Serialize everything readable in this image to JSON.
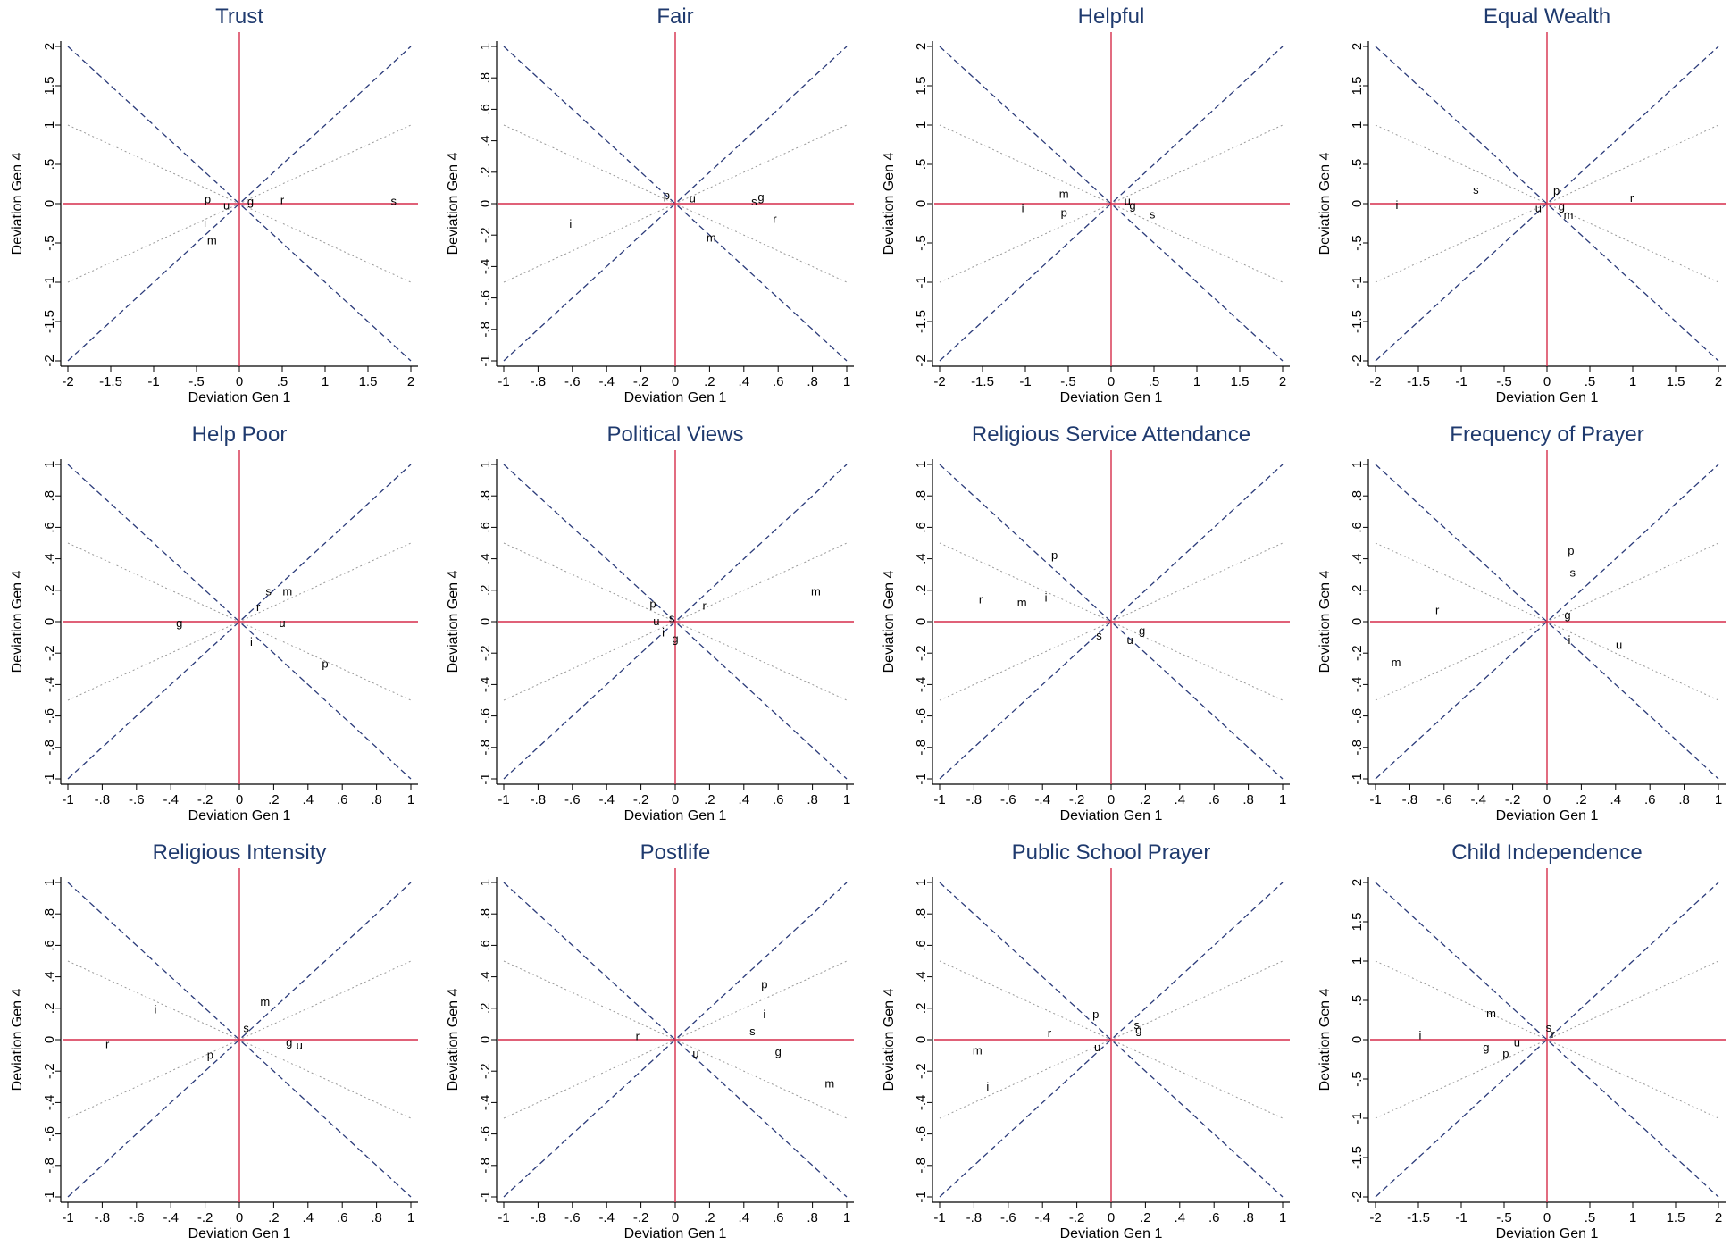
{
  "chart_data": [
    {
      "type": "scatter",
      "title": "Trust",
      "xlabel": "Deviation Gen 1",
      "ylabel": "Deviation Gen 4",
      "xlim": [
        -2,
        2
      ],
      "ylim": [
        -2,
        2
      ],
      "xticks": [
        "-2",
        "-1.5",
        "-1",
        "-.5",
        "0",
        ".5",
        "1",
        "1.5",
        "2"
      ],
      "yticks": [
        "-2",
        "-1.5",
        "-1",
        "-.5",
        "0",
        ".5",
        "1",
        "1.5",
        "2"
      ],
      "reference_lines": {
        "axes_color": "#d62d4b",
        "diagonal_color": "#2b3b7a",
        "half_slope_color": "#9a9a9a"
      },
      "points": [
        {
          "label": "p",
          "x": -0.37,
          "y": 0.05
        },
        {
          "label": "u",
          "x": -0.15,
          "y": -0.03
        },
        {
          "label": "g",
          "x": 0.13,
          "y": 0.02
        },
        {
          "label": "r",
          "x": 0.5,
          "y": 0.04
        },
        {
          "label": "s",
          "x": 1.8,
          "y": 0.03
        },
        {
          "label": "i",
          "x": -0.4,
          "y": -0.25
        },
        {
          "label": "m",
          "x": -0.32,
          "y": -0.47
        }
      ]
    },
    {
      "type": "scatter",
      "title": "Fair",
      "xlabel": "Deviation Gen 1",
      "ylabel": "Deviation Gen 4",
      "xlim": [
        -1,
        1
      ],
      "ylim": [
        -1,
        1
      ],
      "xticks": [
        "-1",
        "-.8",
        "-.6",
        "-.4",
        "-.2",
        "0",
        ".2",
        ".4",
        ".6",
        ".8",
        "1"
      ],
      "yticks": [
        "-1",
        "-.8",
        "-.6",
        "-.4",
        "-.2",
        "0",
        ".2",
        ".4",
        ".6",
        ".8",
        "1"
      ],
      "reference_lines": {
        "axes_color": "#d62d4b",
        "diagonal_color": "#2b3b7a",
        "half_slope_color": "#9a9a9a"
      },
      "points": [
        {
          "label": "p",
          "x": -0.05,
          "y": 0.05
        },
        {
          "label": "u",
          "x": 0.1,
          "y": 0.03
        },
        {
          "label": "s",
          "x": 0.46,
          "y": 0.01
        },
        {
          "label": "g",
          "x": 0.5,
          "y": 0.04
        },
        {
          "label": "r",
          "x": 0.58,
          "y": -0.1
        },
        {
          "label": "i",
          "x": -0.61,
          "y": -0.13
        },
        {
          "label": "m",
          "x": 0.21,
          "y": -0.22
        }
      ]
    },
    {
      "type": "scatter",
      "title": "Helpful",
      "xlabel": "Deviation Gen 1",
      "ylabel": "Deviation Gen 4",
      "xlim": [
        -2,
        2
      ],
      "ylim": [
        -2,
        2
      ],
      "xticks": [
        "-2",
        "-1.5",
        "-1",
        "-.5",
        "0",
        ".5",
        "1",
        "1.5",
        "2"
      ],
      "yticks": [
        "-2",
        "-1.5",
        "-1",
        "-.5",
        "0",
        ".5",
        "1",
        "1.5",
        "2"
      ],
      "reference_lines": {
        "axes_color": "#d62d4b",
        "diagonal_color": "#2b3b7a",
        "half_slope_color": "#9a9a9a"
      },
      "points": [
        {
          "label": "m",
          "x": -0.55,
          "y": 0.12
        },
        {
          "label": "u",
          "x": 0.19,
          "y": 0.03
        },
        {
          "label": "g",
          "x": 0.25,
          "y": -0.03
        },
        {
          "label": "s",
          "x": 0.48,
          "y": -0.14
        },
        {
          "label": "i",
          "x": -1.03,
          "y": -0.06
        },
        {
          "label": "p",
          "x": -0.55,
          "y": -0.12
        }
      ]
    },
    {
      "type": "scatter",
      "title": "Equal Wealth",
      "xlabel": "Deviation Gen 1",
      "ylabel": "Deviation Gen 4",
      "xlim": [
        -2,
        2
      ],
      "ylim": [
        -2,
        2
      ],
      "xticks": [
        "-2",
        "-1.5",
        "-1",
        "-.5",
        "0",
        ".5",
        "1",
        "1.5",
        "2"
      ],
      "yticks": [
        "-2",
        "-1.5",
        "-1",
        "-.5",
        "0",
        ".5",
        "1",
        "1.5",
        "2"
      ],
      "reference_lines": {
        "axes_color": "#d62d4b",
        "diagonal_color": "#2b3b7a",
        "half_slope_color": "#9a9a9a"
      },
      "points": [
        {
          "label": "s",
          "x": -0.83,
          "y": 0.17
        },
        {
          "label": "p",
          "x": 0.11,
          "y": 0.16
        },
        {
          "label": "r",
          "x": 0.99,
          "y": 0.07
        },
        {
          "label": "i",
          "x": -1.75,
          "y": -0.02
        },
        {
          "label": "u",
          "x": -0.1,
          "y": -0.06
        },
        {
          "label": "g",
          "x": 0.17,
          "y": -0.04
        },
        {
          "label": "m",
          "x": 0.25,
          "y": -0.15
        }
      ]
    },
    {
      "type": "scatter",
      "title": "Help Poor",
      "xlabel": "Deviation Gen 1",
      "ylabel": "Deviation Gen 4",
      "xlim": [
        -1,
        1
      ],
      "ylim": [
        -1,
        1
      ],
      "xticks": [
        "-1",
        "-.8",
        "-.6",
        "-.4",
        "-.2",
        "0",
        ".2",
        ".4",
        ".6",
        ".8",
        "1"
      ],
      "yticks": [
        "-1",
        "-.8",
        "-.6",
        "-.4",
        "-.2",
        "0",
        ".2",
        ".4",
        ".6",
        ".8",
        "1"
      ],
      "reference_lines": {
        "axes_color": "#d62d4b",
        "diagonal_color": "#2b3b7a",
        "half_slope_color": "#9a9a9a"
      },
      "points": [
        {
          "label": "s",
          "x": 0.17,
          "y": 0.19
        },
        {
          "label": "m",
          "x": 0.28,
          "y": 0.19
        },
        {
          "label": "r",
          "x": 0.11,
          "y": 0.09
        },
        {
          "label": "g",
          "x": -0.35,
          "y": -0.01
        },
        {
          "label": "u",
          "x": 0.25,
          "y": -0.01
        },
        {
          "label": "i",
          "x": 0.07,
          "y": -0.13
        },
        {
          "label": "p",
          "x": 0.5,
          "y": -0.27
        }
      ]
    },
    {
      "type": "scatter",
      "title": "Political Views",
      "xlabel": "Deviation Gen 1",
      "ylabel": "Deviation Gen 4",
      "xlim": [
        -1,
        1
      ],
      "ylim": [
        -1,
        1
      ],
      "xticks": [
        "-1",
        "-.8",
        "-.6",
        "-.4",
        "-.2",
        "0",
        ".2",
        ".4",
        ".6",
        ".8",
        "1"
      ],
      "yticks": [
        "-1",
        "-.8",
        "-.6",
        "-.4",
        "-.2",
        "0",
        ".2",
        ".4",
        ".6",
        ".8",
        "1"
      ],
      "reference_lines": {
        "axes_color": "#d62d4b",
        "diagonal_color": "#2b3b7a",
        "half_slope_color": "#9a9a9a"
      },
      "points": [
        {
          "label": "m",
          "x": 0.82,
          "y": 0.19
        },
        {
          "label": "p",
          "x": -0.13,
          "y": 0.11
        },
        {
          "label": "r",
          "x": 0.17,
          "y": 0.1
        },
        {
          "label": "s",
          "x": -0.02,
          "y": 0.02
        },
        {
          "label": "u",
          "x": -0.11,
          "y": 0.0
        },
        {
          "label": "i",
          "x": -0.07,
          "y": -0.07
        },
        {
          "label": "g",
          "x": 0.0,
          "y": -0.11
        }
      ]
    },
    {
      "type": "scatter",
      "title": "Religious Service Attendance",
      "xlabel": "Deviation Gen 1",
      "ylabel": "Deviation Gen 4",
      "xlim": [
        -1,
        1
      ],
      "ylim": [
        -1,
        1
      ],
      "xticks": [
        "-1",
        "-.8",
        "-.6",
        "-.4",
        "-.2",
        "0",
        ".2",
        ".4",
        ".6",
        ".8",
        "1"
      ],
      "yticks": [
        "-1",
        "-.8",
        "-.6",
        "-.4",
        "-.2",
        "0",
        ".2",
        ".4",
        ".6",
        ".8",
        "1"
      ],
      "reference_lines": {
        "axes_color": "#d62d4b",
        "diagonal_color": "#2b3b7a",
        "half_slope_color": "#9a9a9a"
      },
      "points": [
        {
          "label": "p",
          "x": -0.33,
          "y": 0.42
        },
        {
          "label": "r",
          "x": -0.76,
          "y": 0.14
        },
        {
          "label": "m",
          "x": -0.52,
          "y": 0.12
        },
        {
          "label": "i",
          "x": -0.38,
          "y": 0.15
        },
        {
          "label": "s",
          "x": -0.07,
          "y": -0.09
        },
        {
          "label": "u",
          "x": 0.11,
          "y": -0.12
        },
        {
          "label": "g",
          "x": 0.18,
          "y": -0.06
        }
      ]
    },
    {
      "type": "scatter",
      "title": "Frequency of Prayer",
      "xlabel": "Deviation Gen 1",
      "ylabel": "Deviation Gen 4",
      "xlim": [
        -1,
        1
      ],
      "ylim": [
        -1,
        1
      ],
      "xticks": [
        "-1",
        "-.8",
        "-.6",
        "-.4",
        "-.2",
        "0",
        ".2",
        ".4",
        ".6",
        ".8",
        "1"
      ],
      "yticks": [
        "-1",
        "-.8",
        "-.6",
        "-.4",
        "-.2",
        "0",
        ".2",
        ".4",
        ".6",
        ".8",
        "1"
      ],
      "reference_lines": {
        "axes_color": "#d62d4b",
        "diagonal_color": "#2b3b7a",
        "half_slope_color": "#9a9a9a"
      },
      "points": [
        {
          "label": "p",
          "x": 0.14,
          "y": 0.45
        },
        {
          "label": "s",
          "x": 0.15,
          "y": 0.31
        },
        {
          "label": "r",
          "x": -0.64,
          "y": 0.07
        },
        {
          "label": "g",
          "x": 0.12,
          "y": 0.04
        },
        {
          "label": "i",
          "x": 0.13,
          "y": -0.12
        },
        {
          "label": "u",
          "x": 0.42,
          "y": -0.15
        },
        {
          "label": "m",
          "x": -0.88,
          "y": -0.26
        }
      ]
    },
    {
      "type": "scatter",
      "title": "Religious Intensity",
      "xlabel": "Deviation Gen 1",
      "ylabel": "Deviation Gen 4",
      "xlim": [
        -1,
        1
      ],
      "ylim": [
        -1,
        1
      ],
      "xticks": [
        "-1",
        "-.8",
        "-.6",
        "-.4",
        "-.2",
        "0",
        ".2",
        ".4",
        ".6",
        ".8",
        "1"
      ],
      "yticks": [
        "-1",
        "-.8",
        "-.6",
        "-.4",
        "-.2",
        "0",
        ".2",
        ".4",
        ".6",
        ".8",
        "1"
      ],
      "reference_lines": {
        "axes_color": "#d62d4b",
        "diagonal_color": "#2b3b7a",
        "half_slope_color": "#9a9a9a"
      },
      "points": [
        {
          "label": "m",
          "x": 0.15,
          "y": 0.24
        },
        {
          "label": "i",
          "x": -0.49,
          "y": 0.19
        },
        {
          "label": "s",
          "x": 0.04,
          "y": 0.07
        },
        {
          "label": "r",
          "x": -0.77,
          "y": -0.03
        },
        {
          "label": "g",
          "x": 0.29,
          "y": -0.02
        },
        {
          "label": "u",
          "x": 0.35,
          "y": -0.04
        },
        {
          "label": "p",
          "x": -0.17,
          "y": -0.1
        }
      ]
    },
    {
      "type": "scatter",
      "title": "Postlife",
      "xlabel": "Deviation Gen 1",
      "ylabel": "Deviation Gen 4",
      "xlim": [
        -1,
        1
      ],
      "ylim": [
        -1,
        1
      ],
      "xticks": [
        "-1",
        "-.8",
        "-.6",
        "-.4",
        "-.2",
        "0",
        ".2",
        ".4",
        ".6",
        ".8",
        "1"
      ],
      "yticks": [
        "-1",
        "-.8",
        "-.6",
        "-.4",
        "-.2",
        "0",
        ".2",
        ".4",
        ".6",
        ".8",
        "1"
      ],
      "reference_lines": {
        "axes_color": "#d62d4b",
        "diagonal_color": "#2b3b7a",
        "half_slope_color": "#9a9a9a"
      },
      "points": [
        {
          "label": "p",
          "x": 0.52,
          "y": 0.35
        },
        {
          "label": "i",
          "x": 0.52,
          "y": 0.16
        },
        {
          "label": "s",
          "x": 0.45,
          "y": 0.05
        },
        {
          "label": "r",
          "x": -0.22,
          "y": 0.02
        },
        {
          "label": "u",
          "x": 0.12,
          "y": -0.09
        },
        {
          "label": "g",
          "x": 0.6,
          "y": -0.08
        },
        {
          "label": "m",
          "x": 0.9,
          "y": -0.28
        }
      ]
    },
    {
      "type": "scatter",
      "title": "Public School Prayer",
      "xlabel": "Deviation Gen 1",
      "ylabel": "Deviation Gen 4",
      "xlim": [
        -1,
        1
      ],
      "ylim": [
        -1,
        1
      ],
      "xticks": [
        "-1",
        "-.8",
        "-.6",
        "-.4",
        "-.2",
        "0",
        ".2",
        ".4",
        ".6",
        ".8",
        "1"
      ],
      "yticks": [
        "-1",
        "-.8",
        "-.6",
        "-.4",
        "-.2",
        "0",
        ".2",
        ".4",
        ".6",
        ".8",
        "1"
      ],
      "reference_lines": {
        "axes_color": "#d62d4b",
        "diagonal_color": "#2b3b7a",
        "half_slope_color": "#9a9a9a"
      },
      "points": [
        {
          "label": "p",
          "x": -0.09,
          "y": 0.16
        },
        {
          "label": "s",
          "x": 0.15,
          "y": 0.09
        },
        {
          "label": "g",
          "x": 0.16,
          "y": 0.06
        },
        {
          "label": "r",
          "x": -0.36,
          "y": 0.04
        },
        {
          "label": "m",
          "x": -0.78,
          "y": -0.07
        },
        {
          "label": "u",
          "x": -0.08,
          "y": -0.05
        },
        {
          "label": "i",
          "x": -0.72,
          "y": -0.3
        }
      ]
    },
    {
      "type": "scatter",
      "title": "Child Independence",
      "xlabel": "Deviation Gen 1",
      "ylabel": "Deviation Gen 4",
      "xlim": [
        -2,
        2
      ],
      "ylim": [
        -2,
        2
      ],
      "xticks": [
        "-2",
        "-1.5",
        "-1",
        "-.5",
        "0",
        ".5",
        "1",
        "1.5",
        "2"
      ],
      "yticks": [
        "-2",
        "-1.5",
        "-1",
        "-.5",
        "0",
        ".5",
        "1",
        "1.5",
        "2"
      ],
      "reference_lines": {
        "axes_color": "#d62d4b",
        "diagonal_color": "#2b3b7a",
        "half_slope_color": "#9a9a9a"
      },
      "points": [
        {
          "label": "m",
          "x": -0.65,
          "y": 0.33
        },
        {
          "label": "s",
          "x": 0.02,
          "y": 0.15
        },
        {
          "label": "r",
          "x": 0.07,
          "y": 0.07
        },
        {
          "label": "i",
          "x": -1.48,
          "y": 0.05
        },
        {
          "label": "u",
          "x": -0.35,
          "y": -0.04
        },
        {
          "label": "g",
          "x": -0.71,
          "y": -0.1
        },
        {
          "label": "p",
          "x": -0.48,
          "y": -0.18
        }
      ]
    }
  ]
}
